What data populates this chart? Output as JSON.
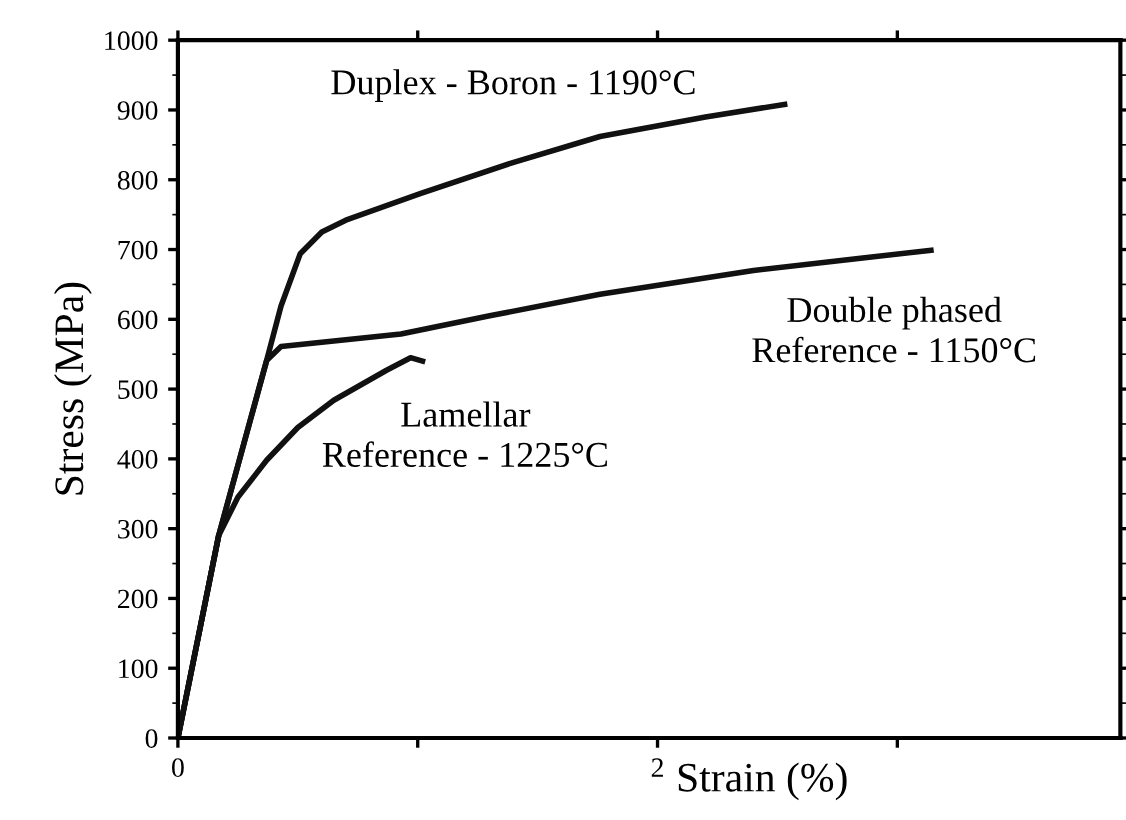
{
  "chart_data": {
    "type": "line",
    "xlabel": "Strain (%)",
    "ylabel": "Stress (MPa)",
    "xlim": [
      0,
      3.93
    ],
    "ylim": [
      0,
      1000
    ],
    "xticks": [
      0,
      {
        "value": 1,
        "label": null
      },
      2,
      {
        "value": 3,
        "label": null
      }
    ],
    "yticks": [
      0,
      100,
      200,
      300,
      400,
      500,
      600,
      700,
      800,
      900,
      1000
    ],
    "grid": false,
    "legend": false,
    "marker": "none",
    "line_style": "solid",
    "series": [
      {
        "color": "#111111",
        "x": [
          0,
          0.17,
          0.37,
          0.43,
          0.51,
          0.6,
          0.7,
          1.01,
          1.4,
          1.76,
          2.2,
          2.53
        ],
        "values": [
          0,
          290,
          541,
          619,
          694,
          725,
          742,
          780,
          825,
          862,
          890,
          908
        ]
      },
      {
        "color": "#111111",
        "x": [
          0,
          0.17,
          0.37,
          0.43,
          0.6,
          0.93,
          1.3,
          1.76,
          2.4,
          3.14
        ],
        "values": [
          0,
          290,
          541,
          561,
          567,
          579,
          605,
          636,
          670,
          699
        ]
      },
      {
        "color": "#111111",
        "x": [
          0,
          0.17,
          0.25,
          0.37,
          0.5,
          0.65,
          0.87,
          0.97,
          1.02
        ],
        "values": [
          0,
          290,
          345,
          398,
          445,
          484,
          527,
          545,
          540
        ]
      }
    ],
    "annotations": [
      "Duplex - Boron - 1190°C",
      "Double phased\nReference - 1150°C",
      "Lamellar\nReference - 1225°C"
    ]
  }
}
